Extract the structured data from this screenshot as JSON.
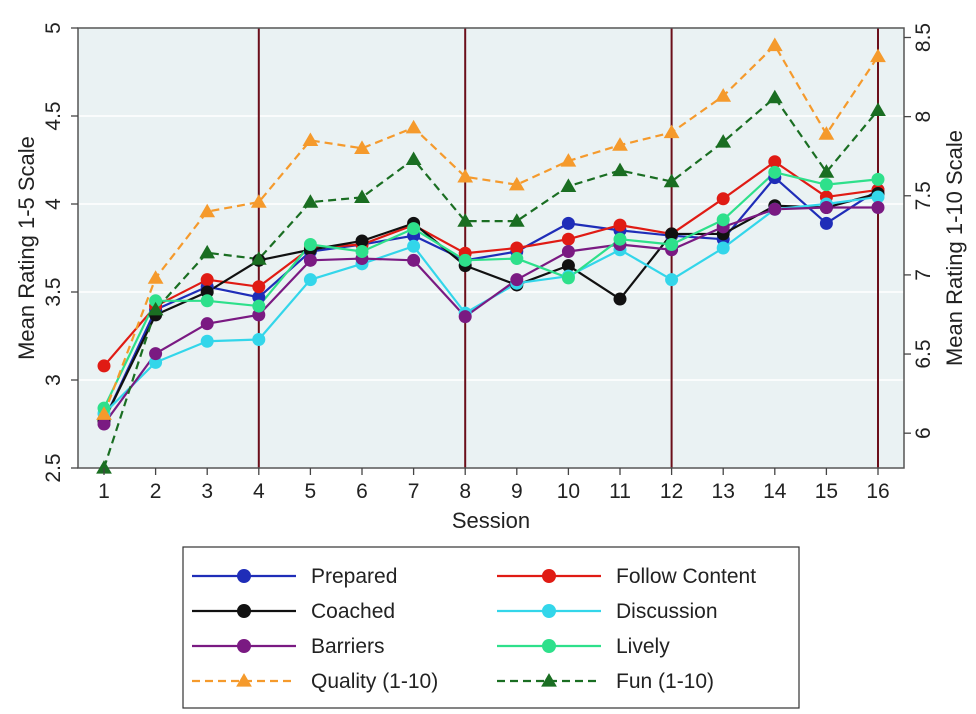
{
  "chart_data": {
    "type": "line",
    "title": "",
    "xlabel": "Session",
    "ylabel": "Mean Rating 1-5 Scale",
    "ylabel_right": "Mean Rating 1-10 Scale",
    "x": [
      1,
      2,
      3,
      4,
      5,
      6,
      7,
      8,
      9,
      10,
      11,
      12,
      13,
      14,
      15,
      16
    ],
    "xticks": [
      "1",
      "2",
      "3",
      "4",
      "5",
      "6",
      "7",
      "8",
      "9",
      "10",
      "11",
      "12",
      "13",
      "14",
      "15",
      "16"
    ],
    "ylim": [
      2.5,
      5
    ],
    "yticks": [
      "2.5",
      "3",
      "3.5",
      "4",
      "4.5",
      "5"
    ],
    "ylim_right": [
      5.78,
      8.56
    ],
    "yticks_right": [
      {
        "label": "6",
        "value": 6
      },
      {
        "label": "6.5",
        "value": 6.5
      },
      {
        "label": "7",
        "value": 7
      },
      {
        "label": "7.5",
        "value": 7.5
      },
      {
        "label": "8",
        "value": 8
      },
      {
        "label": "8.5",
        "value": 8.5
      }
    ],
    "vertical_lines": [
      4,
      8,
      12,
      16
    ],
    "grid": true,
    "legend_position": "bottom",
    "series": [
      {
        "name": "Prepared",
        "color": "#1f2db8",
        "marker": "circle",
        "dash": false,
        "axis": "left",
        "values": [
          2.77,
          3.4,
          3.53,
          3.47,
          3.73,
          3.77,
          3.82,
          3.68,
          3.73,
          3.89,
          3.85,
          3.82,
          3.8,
          4.15,
          3.89,
          4.08
        ]
      },
      {
        "name": "Follow Content",
        "color": "#e01b14",
        "marker": "circle",
        "dash": false,
        "axis": "left",
        "values": [
          3.08,
          3.42,
          3.57,
          3.53,
          3.75,
          3.77,
          3.88,
          3.72,
          3.75,
          3.8,
          3.88,
          3.83,
          4.03,
          4.24,
          4.04,
          4.08
        ]
      },
      {
        "name": "Coached",
        "color": "#111111",
        "marker": "circle",
        "dash": false,
        "axis": "left",
        "values": [
          2.77,
          3.37,
          3.5,
          3.68,
          3.74,
          3.79,
          3.89,
          3.65,
          3.54,
          3.65,
          3.46,
          3.83,
          3.83,
          3.99,
          3.98,
          4.06
        ]
      },
      {
        "name": "Discussion",
        "color": "#33d6ea",
        "marker": "circle",
        "dash": false,
        "axis": "left",
        "values": [
          2.81,
          3.1,
          3.22,
          3.23,
          3.57,
          3.66,
          3.76,
          3.38,
          3.55,
          3.59,
          3.74,
          3.57,
          3.75,
          3.97,
          4.0,
          4.04
        ]
      },
      {
        "name": "Barriers",
        "color": "#7a1a82",
        "marker": "circle",
        "dash": false,
        "axis": "left",
        "values": [
          2.75,
          3.15,
          3.32,
          3.37,
          3.68,
          3.69,
          3.68,
          3.36,
          3.57,
          3.73,
          3.77,
          3.74,
          3.87,
          3.97,
          3.98,
          3.98
        ]
      },
      {
        "name": "Lively",
        "color": "#2ee08b",
        "marker": "circle",
        "dash": false,
        "axis": "left",
        "values": [
          2.84,
          3.45,
          3.45,
          3.42,
          3.77,
          3.73,
          3.86,
          3.68,
          3.69,
          3.58,
          3.8,
          3.77,
          3.91,
          4.18,
          4.11,
          4.14
        ]
      },
      {
        "name": "Quality (1-10)",
        "color": "#f59a2c",
        "marker": "triangle",
        "dash": true,
        "axis": "right",
        "values": [
          6.12,
          6.98,
          7.4,
          7.46,
          7.85,
          7.8,
          7.93,
          7.62,
          7.57,
          7.72,
          7.82,
          7.9,
          8.13,
          8.45,
          7.89,
          8.38
        ]
      },
      {
        "name": "Fun (1-10)",
        "color": "#1a6e22",
        "marker": "triangle",
        "dash": true,
        "axis": "right",
        "values": [
          5.78,
          6.78,
          7.14,
          7.1,
          7.46,
          7.49,
          7.73,
          7.34,
          7.34,
          7.56,
          7.66,
          7.59,
          7.84,
          8.12,
          7.65,
          8.04
        ]
      }
    ]
  }
}
